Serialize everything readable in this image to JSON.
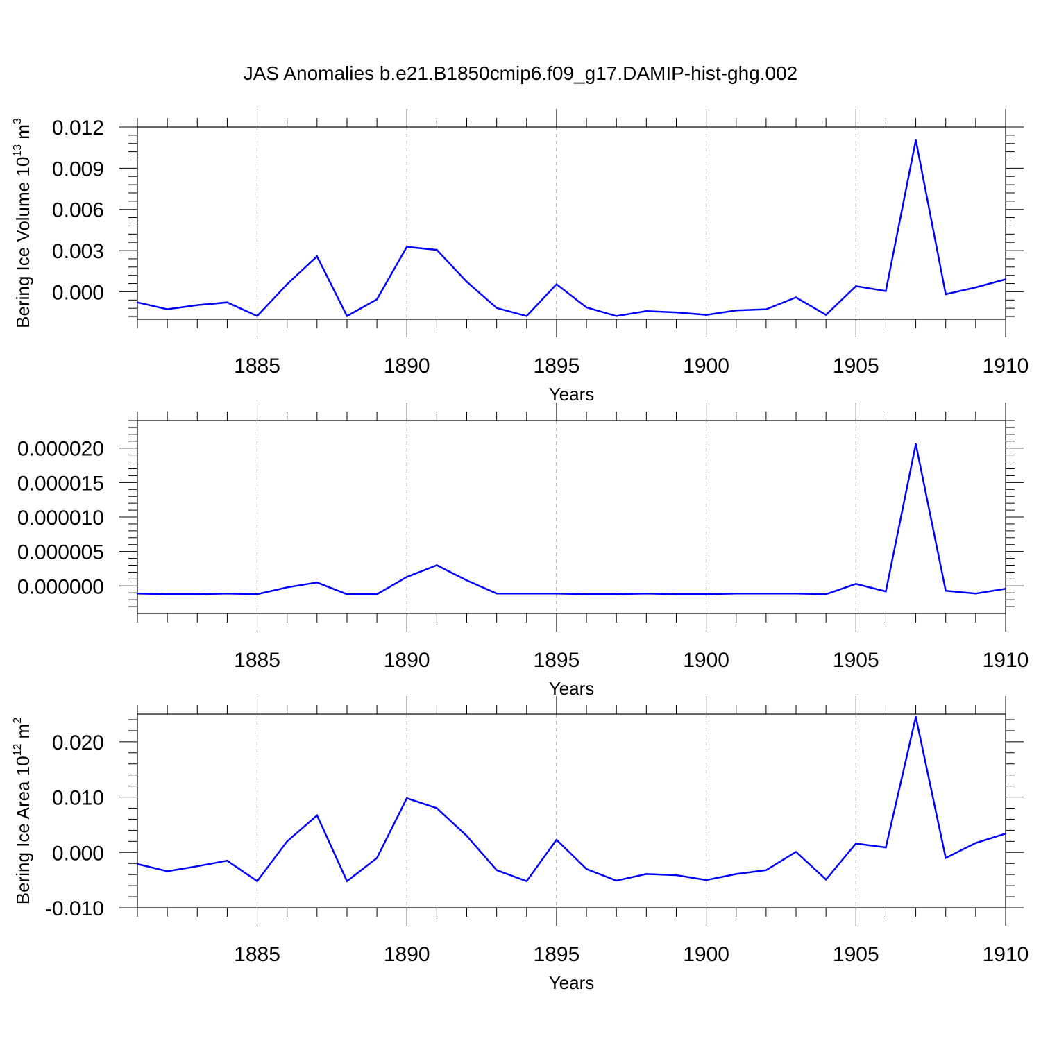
{
  "title": "JAS Anomalies b.e21.B1850cmip6.f09_g17.DAMIP-hist-ghg.002",
  "line_color": "#0000ff",
  "chart_data": [
    {
      "type": "line",
      "xlabel": "Years",
      "ylabel": "Bering Ice Volume 10",
      "ylabel_sup": "13",
      "ylabel_unit": " m",
      "ylabel_unit_sup": "3",
      "xlim": [
        1881,
        1910
      ],
      "ylim": [
        -0.002,
        0.012
      ],
      "xticks": [
        1885,
        1890,
        1895,
        1900,
        1905,
        1910
      ],
      "yticks": [
        0.0,
        0.003,
        0.006,
        0.009,
        0.012
      ],
      "ytick_labels": [
        "0.000",
        "0.003",
        "0.006",
        "0.009",
        "0.012"
      ],
      "grid": "dashed vertical at major x ticks",
      "x": [
        1881,
        1882,
        1883,
        1884,
        1885,
        1886,
        1887,
        1888,
        1889,
        1890,
        1891,
        1892,
        1893,
        1894,
        1895,
        1896,
        1897,
        1898,
        1899,
        1900,
        1901,
        1902,
        1903,
        1904,
        1905,
        1906,
        1907,
        1908,
        1909,
        1910
      ],
      "values": [
        -0.00077,
        -0.00127,
        -0.00097,
        -0.00077,
        -0.00177,
        0.00055,
        0.00258,
        -0.00177,
        -0.00055,
        0.00327,
        0.00305,
        0.00073,
        -0.00118,
        -0.00177,
        0.00055,
        -0.00114,
        -0.00177,
        -0.00141,
        -0.0015,
        -0.00168,
        -0.00136,
        -0.00127,
        -0.00041,
        -0.00168,
        0.00041,
        5e-05,
        0.01105,
        -0.00018,
        0.00032,
        0.00091
      ]
    },
    {
      "type": "line",
      "xlabel": "Years",
      "ylabel": "",
      "xlim": [
        1881,
        1910
      ],
      "ylim": [
        -4e-06,
        2.4e-05
      ],
      "xticks": [
        1885,
        1890,
        1895,
        1900,
        1905,
        1910
      ],
      "yticks": [
        0.0,
        5e-06,
        1e-05,
        1.5e-05,
        2e-05
      ],
      "ytick_labels": [
        "0.000000",
        "0.000005",
        "0.000010",
        "0.000015",
        "0.000020"
      ],
      "grid": "dashed vertical at major x ticks",
      "x": [
        1881,
        1882,
        1883,
        1884,
        1885,
        1886,
        1887,
        1888,
        1889,
        1890,
        1891,
        1892,
        1893,
        1894,
        1895,
        1896,
        1897,
        1898,
        1899,
        1900,
        1901,
        1902,
        1903,
        1904,
        1905,
        1906,
        1907,
        1908,
        1909,
        1910
      ],
      "values": [
        -1.1e-06,
        -1.2e-06,
        -1.2e-06,
        -1.1e-06,
        -1.2e-06,
        -2e-07,
        5e-07,
        -1.2e-06,
        -1.2e-06,
        1.3e-06,
        3e-06,
        8e-07,
        -1.1e-06,
        -1.1e-06,
        -1.1e-06,
        -1.2e-06,
        -1.2e-06,
        -1.1e-06,
        -1.2e-06,
        -1.2e-06,
        -1.1e-06,
        -1.1e-06,
        -1.1e-06,
        -1.2e-06,
        3e-07,
        -8e-07,
        2.06e-05,
        -7e-07,
        -1.1e-06,
        -4e-07
      ]
    },
    {
      "type": "line",
      "xlabel": "Years",
      "ylabel": "Bering Ice Area 10",
      "ylabel_sup": "12",
      "ylabel_unit": " m",
      "ylabel_unit_sup": "2",
      "xlim": [
        1881,
        1910
      ],
      "ylim": [
        -0.01,
        0.025
      ],
      "xticks": [
        1885,
        1890,
        1895,
        1900,
        1905,
        1910
      ],
      "yticks": [
        -0.01,
        0.0,
        0.01,
        0.02
      ],
      "ytick_labels": [
        "-0.010",
        "0.000",
        "0.010",
        "0.020"
      ],
      "grid": "dashed vertical at major x ticks",
      "x": [
        1881,
        1882,
        1883,
        1884,
        1885,
        1886,
        1887,
        1888,
        1889,
        1890,
        1891,
        1892,
        1893,
        1894,
        1895,
        1896,
        1897,
        1898,
        1899,
        1900,
        1901,
        1902,
        1903,
        1904,
        1905,
        1906,
        1907,
        1908,
        1909,
        1910
      ],
      "values": [
        -0.0021,
        -0.0034,
        -0.0025,
        -0.0015,
        -0.0052,
        0.002,
        0.0067,
        -0.0052,
        -0.001,
        0.0098,
        0.008,
        0.003,
        -0.0032,
        -0.0052,
        0.0023,
        -0.003,
        -0.0051,
        -0.0039,
        -0.0041,
        -0.005,
        -0.0039,
        -0.0032,
        0.0001,
        -0.0049,
        0.0016,
        0.0009,
        0.0245,
        -0.001,
        0.0017,
        0.0034
      ]
    }
  ]
}
